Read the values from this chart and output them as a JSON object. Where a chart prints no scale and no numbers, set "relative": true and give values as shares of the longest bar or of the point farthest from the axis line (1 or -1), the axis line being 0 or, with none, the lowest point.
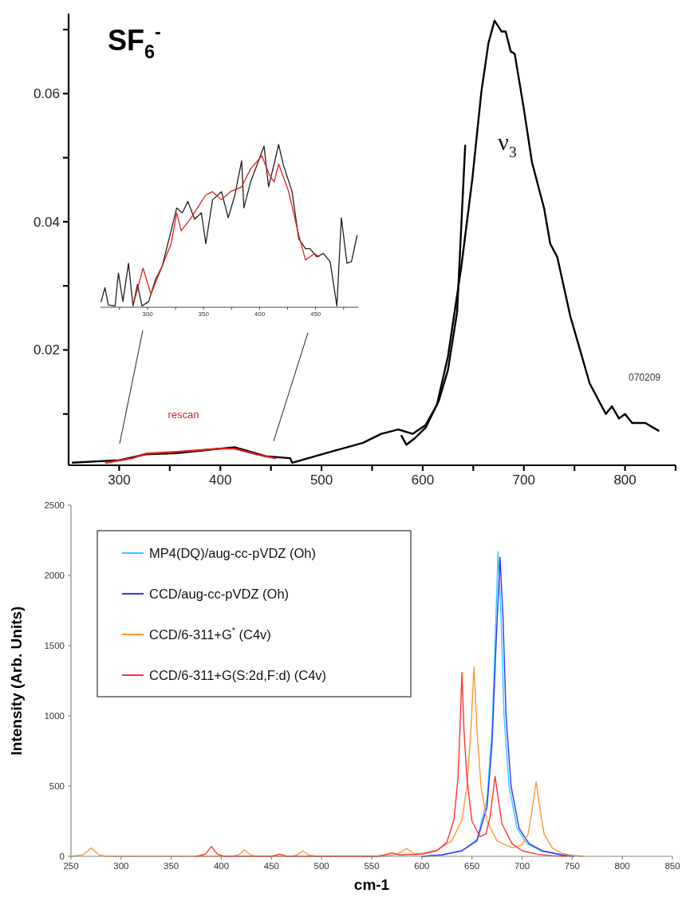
{
  "chart_data": [
    {
      "type": "line",
      "title": "SF$_{6}$$^{-}$",
      "xlim": [
        250,
        850
      ],
      "ylim": [
        0.002,
        0.0725
      ],
      "xticks": [
        300,
        {
          "value": 350,
          "label": null
        },
        400,
        {
          "value": 450,
          "label": null
        },
        500,
        {
          "value": 550,
          "label": null
        },
        600,
        {
          "value": 650,
          "label": null
        },
        700,
        {
          "value": 750,
          "label": null
        },
        800,
        {
          "value": 850,
          "label": null
        }
      ],
      "yticks": [
        {
          "value": 0.01,
          "label": null
        },
        0.02,
        {
          "value": 0.03,
          "label": null
        },
        0.04,
        {
          "value": 0.05,
          "label": null
        },
        0.06,
        {
          "value": 0.07,
          "label": null
        }
      ],
      "grid": false,
      "legend": false,
      "line_style": "solid",
      "marker": "none",
      "annotations": [
        "ν$_{3}$",
        "rescan",
        "070209"
      ],
      "series": [
        {
          "color": "#000000",
          "x": [
            254,
            300,
            326,
            357,
            400,
            414,
            445,
            469,
            471,
            502,
            541,
            559,
            576,
            590,
            603,
            614,
            625,
            638,
            649,
            658,
            665,
            671,
            678,
            682,
            687,
            691,
            700,
            708,
            720,
            726,
            733,
            746,
            755,
            765,
            781,
            787,
            794,
            800,
            807,
            820,
            833
          ],
          "values": [
            0.0024,
            0.0028,
            0.0037,
            0.0039,
            0.0046,
            0.0048,
            0.0034,
            0.0031,
            0.0024,
            0.0038,
            0.0055,
            0.0069,
            0.0076,
            0.0069,
            0.0083,
            0.0114,
            0.019,
            0.0328,
            0.0466,
            0.0603,
            0.0679,
            0.0714,
            0.0697,
            0.0697,
            0.0666,
            0.0662,
            0.0576,
            0.0493,
            0.0421,
            0.0366,
            0.0345,
            0.0252,
            0.0203,
            0.0148,
            0.01,
            0.0112,
            0.0093,
            0.01,
            0.0086,
            0.0086,
            0.0074
          ]
        },
        {
          "color": "#000000",
          "x": [
            579,
            584,
            592,
            603,
            616,
            625,
            634,
            642
          ],
          "values": [
            0.0066,
            0.0052,
            0.0062,
            0.0079,
            0.0121,
            0.0169,
            0.0259,
            0.0519
          ]
        },
        {
          "color": "#d62020",
          "x": [
            287,
            313,
            326,
            357,
            400,
            414,
            436,
            454
          ],
          "values": [
            0.0024,
            0.0031,
            0.0038,
            0.0041,
            0.0046,
            0.0046,
            0.0037,
            0.0031
          ]
        }
      ]
    },
    {
      "type": "line",
      "relative": true,
      "xlim": [
        258,
        488
      ],
      "tick_labels": "x",
      "xticks": [
        {
          "value": 275,
          "label": null
        },
        300,
        {
          "value": 325,
          "label": null
        },
        350,
        {
          "value": 375,
          "label": null
        },
        400,
        {
          "value": 425,
          "label": null
        },
        450,
        {
          "value": 475,
          "label": null
        }
      ],
      "grid": false,
      "legend": false,
      "line_style": "solid",
      "marker": "none",
      "series": [
        {
          "color": "#222222",
          "x": [
            258.5,
            262,
            265,
            271,
            274,
            278,
            283,
            287,
            291,
            295,
            301,
            307,
            313,
            321,
            326,
            331,
            336,
            342,
            348,
            352,
            358,
            366,
            372,
            378,
            384,
            386,
            392,
            398,
            404,
            408,
            413,
            417,
            421,
            429,
            435,
            441,
            445,
            451,
            457,
            463,
            469,
            473,
            478,
            482,
            487
          ],
          "values": [
            0.035,
            0.12,
            0.014,
            0.008,
            0.21,
            0.035,
            0.27,
            0.008,
            0.14,
            0.008,
            0.035,
            0.17,
            0.25,
            0.47,
            0.61,
            0.58,
            0.65,
            0.54,
            0.58,
            0.39,
            0.66,
            0.71,
            0.55,
            0.69,
            0.9,
            0.61,
            0.77,
            0.88,
            0.99,
            0.74,
            0.88,
            1.0,
            0.88,
            0.71,
            0.42,
            0.36,
            0.36,
            0.31,
            0.33,
            0.28,
            0.008,
            0.55,
            0.27,
            0.28,
            0.44
          ]
        },
        {
          "color": "#e02020",
          "x": [
            287,
            296,
            303,
            310,
            321,
            326,
            330,
            338,
            352,
            358,
            366,
            374,
            384,
            392,
            402,
            409,
            413,
            417,
            426,
            434,
            441,
            449,
            453
          ],
          "values": [
            0.008,
            0.24,
            0.08,
            0.2,
            0.39,
            0.58,
            0.47,
            0.54,
            0.69,
            0.71,
            0.66,
            0.71,
            0.74,
            0.85,
            0.93,
            0.81,
            0.77,
            0.88,
            0.71,
            0.47,
            0.29,
            0.33,
            0.31
          ]
        }
      ]
    },
    {
      "type": "line",
      "xlabel": "cm-1",
      "ylabel": "Intensity (Arb. Units)",
      "xlim": [
        250,
        850
      ],
      "ylim": [
        0,
        2500
      ],
      "xticks": [
        250,
        300,
        350,
        400,
        450,
        500,
        550,
        600,
        650,
        700,
        750,
        800,
        850
      ],
      "yticks": [
        0,
        500,
        1000,
        1500,
        2000,
        2500
      ],
      "grid": false,
      "legend": "top left",
      "line_style": "solid",
      "marker": "none",
      "series": [
        {
          "name": "MP4(DQ)/aug-cc-pVDZ (Oh)",
          "color": "#33ccff",
          "x": [
            600,
            620,
            640,
            655,
            665,
            670,
            673,
            676,
            679,
            682,
            687,
            695,
            705,
            720,
            740,
            750
          ],
          "values": [
            0,
            10,
            40,
            120,
            400,
            900,
            1500,
            2170,
            1700,
            1000,
            500,
            200,
            90,
            35,
            10,
            0
          ]
        },
        {
          "name": "CCD/aug-cc-pVDZ (Oh)",
          "color": "#3333ff",
          "x": [
            600,
            620,
            640,
            655,
            665,
            670,
            674,
            678,
            681,
            684,
            689,
            697,
            707,
            720,
            740,
            752
          ],
          "values": [
            0,
            10,
            40,
            110,
            350,
            800,
            1500,
            2130,
            1700,
            1000,
            500,
            200,
            90,
            40,
            10,
            0
          ]
        },
        {
          "name": "CCD/6-311+G$^{*}$ (C4v)",
          "color": "#ff9933",
          "x": [
            250,
            262,
            270,
            278,
            285,
            410,
            417,
            423,
            429,
            436,
            470,
            476,
            481,
            487,
            495,
            560,
            575,
            585,
            592,
            600,
            615,
            630,
            640,
            645,
            649,
            652,
            655,
            659,
            665,
            675,
            690,
            700,
            706,
            710,
            714,
            718,
            722,
            730,
            740,
            750,
            762
          ],
          "values": [
            0,
            10,
            60,
            10,
            0,
            0,
            10,
            45,
            10,
            0,
            0,
            10,
            40,
            10,
            0,
            0,
            15,
            55,
            20,
            20,
            45,
            110,
            260,
            500,
            900,
            1350,
            900,
            500,
            250,
            110,
            60,
            80,
            160,
            330,
            530,
            330,
            160,
            60,
            20,
            8,
            0
          ]
        },
        {
          "name": "CCD/6-311+G(S:2d,F:d) (C4v)",
          "color": "#ff3333",
          "x": [
            375,
            384,
            390,
            396,
            403,
            450,
            458,
            466,
            555,
            563,
            570,
            578,
            600,
            615,
            625,
            632,
            636,
            638,
            640,
            642,
            645,
            650,
            658,
            664,
            668,
            671,
            673,
            676,
            680,
            690,
            700,
            715,
            730,
            745
          ],
          "values": [
            0,
            15,
            70,
            15,
            0,
            0,
            15,
            0,
            0,
            10,
            25,
            10,
            15,
            40,
            100,
            260,
            550,
            900,
            1310,
            900,
            550,
            250,
            140,
            160,
            280,
            450,
            570,
            420,
            230,
            90,
            40,
            15,
            5,
            0
          ]
        }
      ]
    }
  ]
}
